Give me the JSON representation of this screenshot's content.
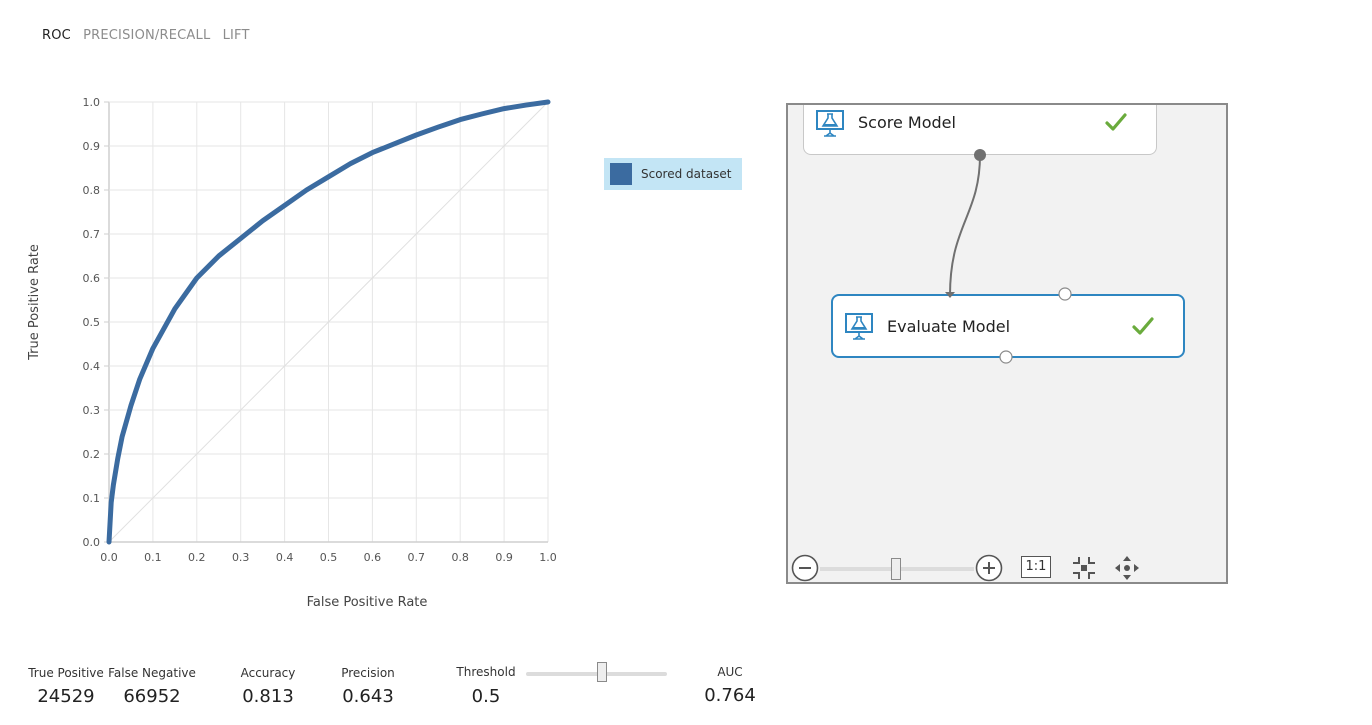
{
  "tabs": [
    "ROC",
    "PRECISION/RECALL",
    "LIFT"
  ],
  "active_tab": 0,
  "legend": {
    "label": "Scored dataset"
  },
  "colors": {
    "series": "#3b6ba0",
    "check": "#6aab3c",
    "module_selected_border": "#2e86c1",
    "module_border": "#c8c8c8",
    "wire": "#707070"
  },
  "chart_data": {
    "type": "line",
    "xlabel": "False Positive Rate",
    "ylabel": "True Positive Rate",
    "xlim": [
      0,
      1
    ],
    "ylim": [
      0,
      1
    ],
    "x_ticks": [
      "0.0",
      "0.1",
      "0.2",
      "0.3",
      "0.4",
      "0.5",
      "0.6",
      "0.7",
      "0.8",
      "0.9",
      "1.0"
    ],
    "y_ticks": [
      "0.0",
      "0.1",
      "0.2",
      "0.3",
      "0.4",
      "0.5",
      "0.6",
      "0.7",
      "0.8",
      "0.9",
      "1.0"
    ],
    "grid": true,
    "legend_position": "right",
    "series": [
      {
        "name": "Scored dataset",
        "x": [
          0,
          0.005,
          0.01,
          0.02,
          0.03,
          0.05,
          0.07,
          0.1,
          0.15,
          0.2,
          0.25,
          0.3,
          0.35,
          0.4,
          0.45,
          0.5,
          0.55,
          0.6,
          0.65,
          0.7,
          0.75,
          0.8,
          0.85,
          0.9,
          0.95,
          1.0
        ],
        "y": [
          0,
          0.09,
          0.13,
          0.19,
          0.24,
          0.31,
          0.37,
          0.44,
          0.53,
          0.6,
          0.65,
          0.69,
          0.73,
          0.765,
          0.8,
          0.83,
          0.86,
          0.885,
          0.905,
          0.925,
          0.943,
          0.96,
          0.973,
          0.985,
          0.993,
          1.0
        ]
      }
    ],
    "reference_line": {
      "x": [
        0,
        1
      ],
      "y": [
        0,
        1
      ]
    }
  },
  "canvas": {
    "modules": [
      {
        "label": "Score Model",
        "icon": "flask-monitor-icon",
        "status": "check-icon"
      },
      {
        "label": "Evaluate Model",
        "icon": "flask-monitor-icon",
        "status": "check-icon"
      }
    ],
    "zoom": {
      "level": 0.46,
      "reset_label": "1:1"
    }
  },
  "metrics": {
    "true_positive": {
      "label": "True Positive",
      "value": "24529"
    },
    "false_negative": {
      "label": "False Negative",
      "value": "66952"
    },
    "accuracy": {
      "label": "Accuracy",
      "value": "0.813"
    },
    "precision": {
      "label": "Precision",
      "value": "0.643"
    },
    "threshold": {
      "label": "Threshold",
      "value": "0.5",
      "slider_fraction": 0.5
    },
    "auc": {
      "label": "AUC",
      "value": "0.764"
    }
  }
}
